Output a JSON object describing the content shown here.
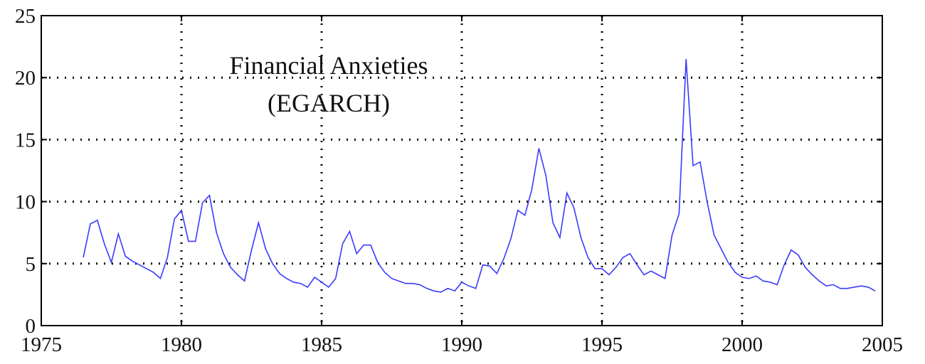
{
  "chart_data": {
    "type": "line",
    "title": "Financial Anxieties",
    "subtitle": "(EGARCH)",
    "x": [
      1976.5,
      1976.75,
      1977,
      1977.25,
      1977.5,
      1977.75,
      1978,
      1978.25,
      1978.5,
      1978.75,
      1979,
      1979.25,
      1979.5,
      1979.75,
      1980,
      1980.25,
      1980.5,
      1980.75,
      1981,
      1981.25,
      1981.5,
      1981.75,
      1982,
      1982.25,
      1982.5,
      1982.75,
      1983,
      1983.25,
      1983.5,
      1983.75,
      1984,
      1984.25,
      1984.5,
      1984.75,
      1985,
      1985.25,
      1985.5,
      1985.75,
      1986,
      1986.25,
      1986.5,
      1986.75,
      1987,
      1987.25,
      1987.5,
      1987.75,
      1988,
      1988.25,
      1988.5,
      1988.75,
      1989,
      1989.25,
      1989.5,
      1989.75,
      1990,
      1990.25,
      1990.5,
      1990.75,
      1991,
      1991.25,
      1991.5,
      1991.75,
      1992,
      1992.25,
      1992.5,
      1992.75,
      1993,
      1993.25,
      1993.5,
      1993.75,
      1994,
      1994.25,
      1994.5,
      1994.75,
      1995,
      1995.25,
      1995.5,
      1995.75,
      1996,
      1996.25,
      1996.5,
      1996.75,
      1997,
      1997.25,
      1997.5,
      1997.75,
      1998,
      1998.25,
      1998.5,
      1998.75,
      1999,
      1999.25,
      1999.5,
      1999.75,
      2000,
      2000.25,
      2000.5,
      2000.75,
      2001,
      2001.25,
      2001.5,
      2001.75,
      2002,
      2002.25,
      2002.5,
      2002.75,
      2003,
      2003.25,
      2003.5,
      2003.75,
      2004,
      2004.25,
      2004.5,
      2004.75
    ],
    "series": [
      {
        "color": "#3a3aff",
        "values": [
          5.5,
          8.2,
          8.5,
          6.6,
          5.1,
          7.4,
          5.6,
          5.2,
          4.9,
          4.6,
          4.3,
          3.8,
          5.5,
          8.6,
          9.3,
          6.8,
          6.8,
          9.9,
          10.5,
          7.5,
          5.8,
          4.7,
          4.1,
          3.6,
          6.1,
          8.3,
          6.2,
          5.0,
          4.2,
          3.8,
          3.5,
          3.4,
          3.1,
          3.9,
          3.5,
          3.1,
          3.8,
          6.6,
          7.6,
          5.8,
          6.5,
          6.5,
          5.1,
          4.3,
          3.8,
          3.6,
          3.4,
          3.4,
          3.3,
          3.0,
          2.8,
          2.7,
          3.0,
          2.8,
          3.5,
          3.2,
          3.0,
          4.9,
          4.8,
          4.2,
          5.4,
          7.0,
          9.3,
          8.9,
          11.0,
          14.3,
          12.1,
          8.3,
          7.1,
          10.7,
          9.5,
          7.1,
          5.5,
          4.6,
          4.6,
          4.1,
          4.7,
          5.5,
          5.8,
          4.9,
          4.1,
          4.4,
          4.1,
          3.8,
          7.3,
          9.0,
          21.5,
          12.9,
          13.2,
          10.0,
          7.3,
          6.2,
          5.1,
          4.3,
          3.9,
          3.8,
          4.0,
          3.6,
          3.5,
          3.3,
          4.9,
          6.1,
          5.7,
          4.7,
          4.1,
          3.6,
          3.2,
          3.3,
          3.0,
          3.0,
          3.1,
          3.2,
          3.1,
          2.8
        ]
      }
    ],
    "xlim": [
      1975,
      2005
    ],
    "xticks": [
      1975,
      1980,
      1985,
      1990,
      1995,
      2000,
      2005
    ],
    "ylim": [
      0,
      25
    ],
    "yticks": [
      0,
      5,
      10,
      15,
      20,
      25
    ],
    "grid": true
  }
}
